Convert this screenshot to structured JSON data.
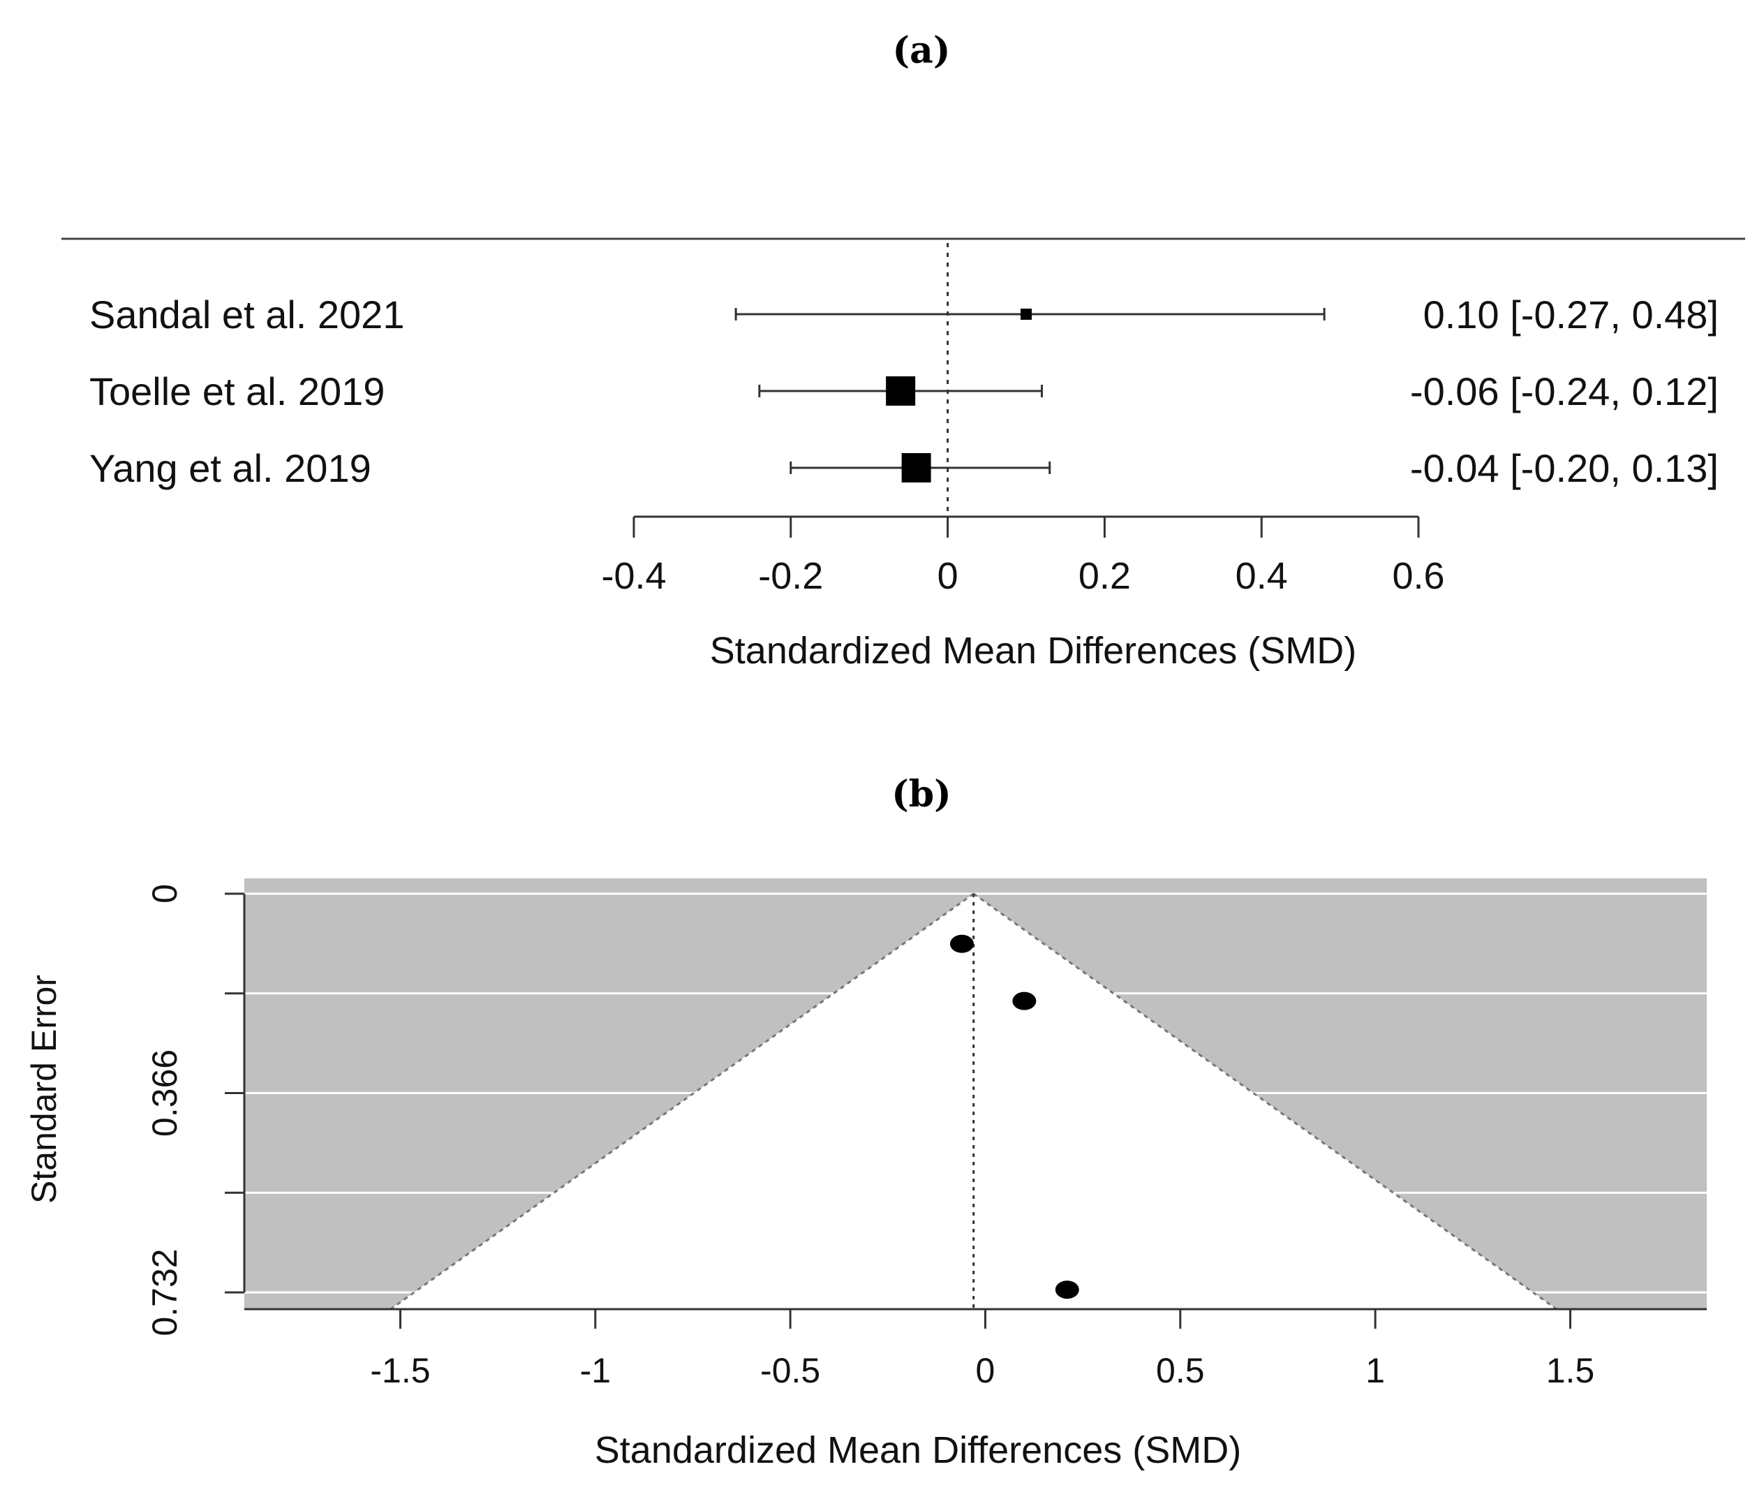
{
  "panel_a_label": "(a)",
  "panel_b_label": "(b)",
  "chart_data": [
    {
      "type": "forest",
      "title": "(a)",
      "xlabel": "Standardized Mean Differences (SMD)",
      "xlim": [
        -0.4,
        0.6
      ],
      "xticks": [
        -0.4,
        -0.2,
        0,
        0.2,
        0.4,
        0.6
      ],
      "xtick_labels": [
        "-0.4",
        "-0.2",
        "0",
        "0.2",
        "0.4",
        "0.6"
      ],
      "reference_line": 0,
      "studies": [
        {
          "name": "Sandal et al. 2021",
          "smd": 0.1,
          "lower": -0.27,
          "upper": 0.48,
          "label": "0.10 [-0.27, 0.48]",
          "weight": "small"
        },
        {
          "name": "Toelle et al. 2019",
          "smd": -0.06,
          "lower": -0.24,
          "upper": 0.12,
          "label": "-0.06 [-0.24, 0.12]",
          "weight": "large"
        },
        {
          "name": "Yang et al. 2019",
          "smd": -0.04,
          "lower": -0.2,
          "upper": 0.13,
          "label": "-0.04 [-0.20, 0.13]",
          "weight": "large"
        }
      ]
    },
    {
      "type": "funnel",
      "title": "(b)",
      "xlabel": "Standardized Mean Differences (SMD)",
      "ylabel": "Standard Error",
      "xlim": [
        -1.9,
        1.85
      ],
      "ylim": [
        0,
        0.732
      ],
      "xticks": [
        -1.5,
        -1,
        -0.5,
        0,
        0.5,
        1,
        1.5
      ],
      "xtick_labels": [
        "-1.5",
        "-1",
        "-0.5",
        "0",
        "0.5",
        "1",
        "1.5"
      ],
      "yticks": [
        0,
        0.183,
        0.366,
        0.549,
        0.732
      ],
      "ytick_labels": [
        "0",
        "",
        "0.366",
        "",
        "0.732"
      ],
      "summary_estimate": -0.03,
      "points": [
        {
          "smd": -0.06,
          "se": 0.092
        },
        {
          "smd": 0.1,
          "se": 0.197
        },
        {
          "smd": 0.21,
          "se": 0.727
        }
      ]
    }
  ]
}
